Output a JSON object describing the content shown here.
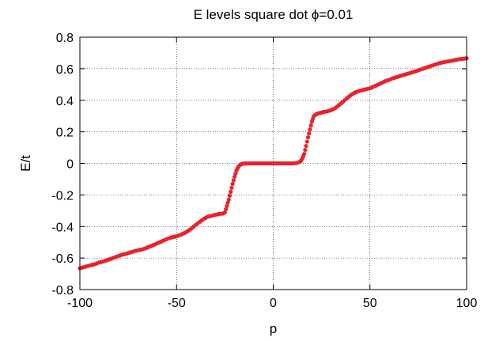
{
  "chart_data": {
    "type": "scatter",
    "title": "E levels square dot  ϕ=0.01",
    "xlabel": "p",
    "ylabel": "E/t",
    "xlim": [
      -100,
      100
    ],
    "ylim": [
      -0.8,
      0.8
    ],
    "xticks": [
      -100,
      -50,
      0,
      50,
      100
    ],
    "yticks": [
      -0.8,
      -0.6,
      -0.4,
      -0.2,
      0,
      0.2,
      0.4,
      0.6,
      0.8
    ],
    "xtick_labels": [
      "-100",
      "-50",
      "0",
      "50",
      "100"
    ],
    "ytick_labels": [
      "-0.8",
      "-0.6",
      "-0.4",
      "-0.2",
      "0",
      "0.2",
      "0.4",
      "0.6",
      "0.8"
    ],
    "grid": true,
    "marker_color": "#e8232a",
    "series": [
      {
        "x": [
          -100,
          -98,
          -96,
          -94,
          -92,
          -90,
          -88,
          -86,
          -84,
          -82,
          -80,
          -78,
          -76,
          -74,
          -72,
          -70,
          -68,
          -66,
          -64,
          -62,
          -60,
          -58,
          -56,
          -54,
          -52,
          -50,
          -48,
          -46,
          -44,
          -42,
          -40,
          -38,
          -36,
          -34,
          -32,
          -30,
          -28,
          -26,
          -25,
          -24,
          -23,
          -22,
          -21,
          -20,
          -19,
          -18,
          -17,
          -16,
          -15,
          -14,
          -12,
          -10,
          -8,
          -6,
          -4,
          -2,
          0,
          2,
          4,
          6,
          8,
          10,
          12,
          14,
          15,
          16,
          17,
          18,
          19,
          20,
          21,
          22,
          23,
          24,
          25,
          26,
          28,
          30,
          32,
          34,
          36,
          38,
          40,
          42,
          44,
          46,
          48,
          50,
          52,
          54,
          56,
          58,
          60,
          62,
          64,
          66,
          68,
          70,
          72,
          74,
          76,
          78,
          80,
          82,
          84,
          86,
          88,
          90,
          92,
          94,
          96,
          98,
          100
        ],
        "y": [
          -0.665,
          -0.658,
          -0.651,
          -0.645,
          -0.638,
          -0.628,
          -0.622,
          -0.614,
          -0.605,
          -0.596,
          -0.587,
          -0.578,
          -0.573,
          -0.565,
          -0.557,
          -0.551,
          -0.546,
          -0.538,
          -0.528,
          -0.518,
          -0.507,
          -0.496,
          -0.485,
          -0.475,
          -0.467,
          -0.462,
          -0.453,
          -0.442,
          -0.428,
          -0.41,
          -0.389,
          -0.371,
          -0.352,
          -0.339,
          -0.333,
          -0.326,
          -0.321,
          -0.318,
          -0.31,
          -0.27,
          -0.23,
          -0.18,
          -0.13,
          -0.085,
          -0.045,
          -0.02,
          -0.008,
          -0.003,
          -0.001,
          0,
          0,
          0,
          0,
          0,
          0,
          0,
          0,
          0,
          0,
          0,
          0,
          0,
          0.002,
          0.012,
          0.03,
          0.06,
          0.11,
          0.165,
          0.215,
          0.265,
          0.3,
          0.31,
          0.316,
          0.319,
          0.322,
          0.326,
          0.33,
          0.338,
          0.35,
          0.37,
          0.39,
          0.412,
          0.432,
          0.447,
          0.458,
          0.464,
          0.47,
          0.476,
          0.487,
          0.498,
          0.51,
          0.521,
          0.53,
          0.54,
          0.547,
          0.556,
          0.563,
          0.57,
          0.578,
          0.585,
          0.594,
          0.603,
          0.611,
          0.619,
          0.628,
          0.635,
          0.641,
          0.646,
          0.65,
          0.655,
          0.66,
          0.663,
          0.666
        ]
      }
    ]
  }
}
